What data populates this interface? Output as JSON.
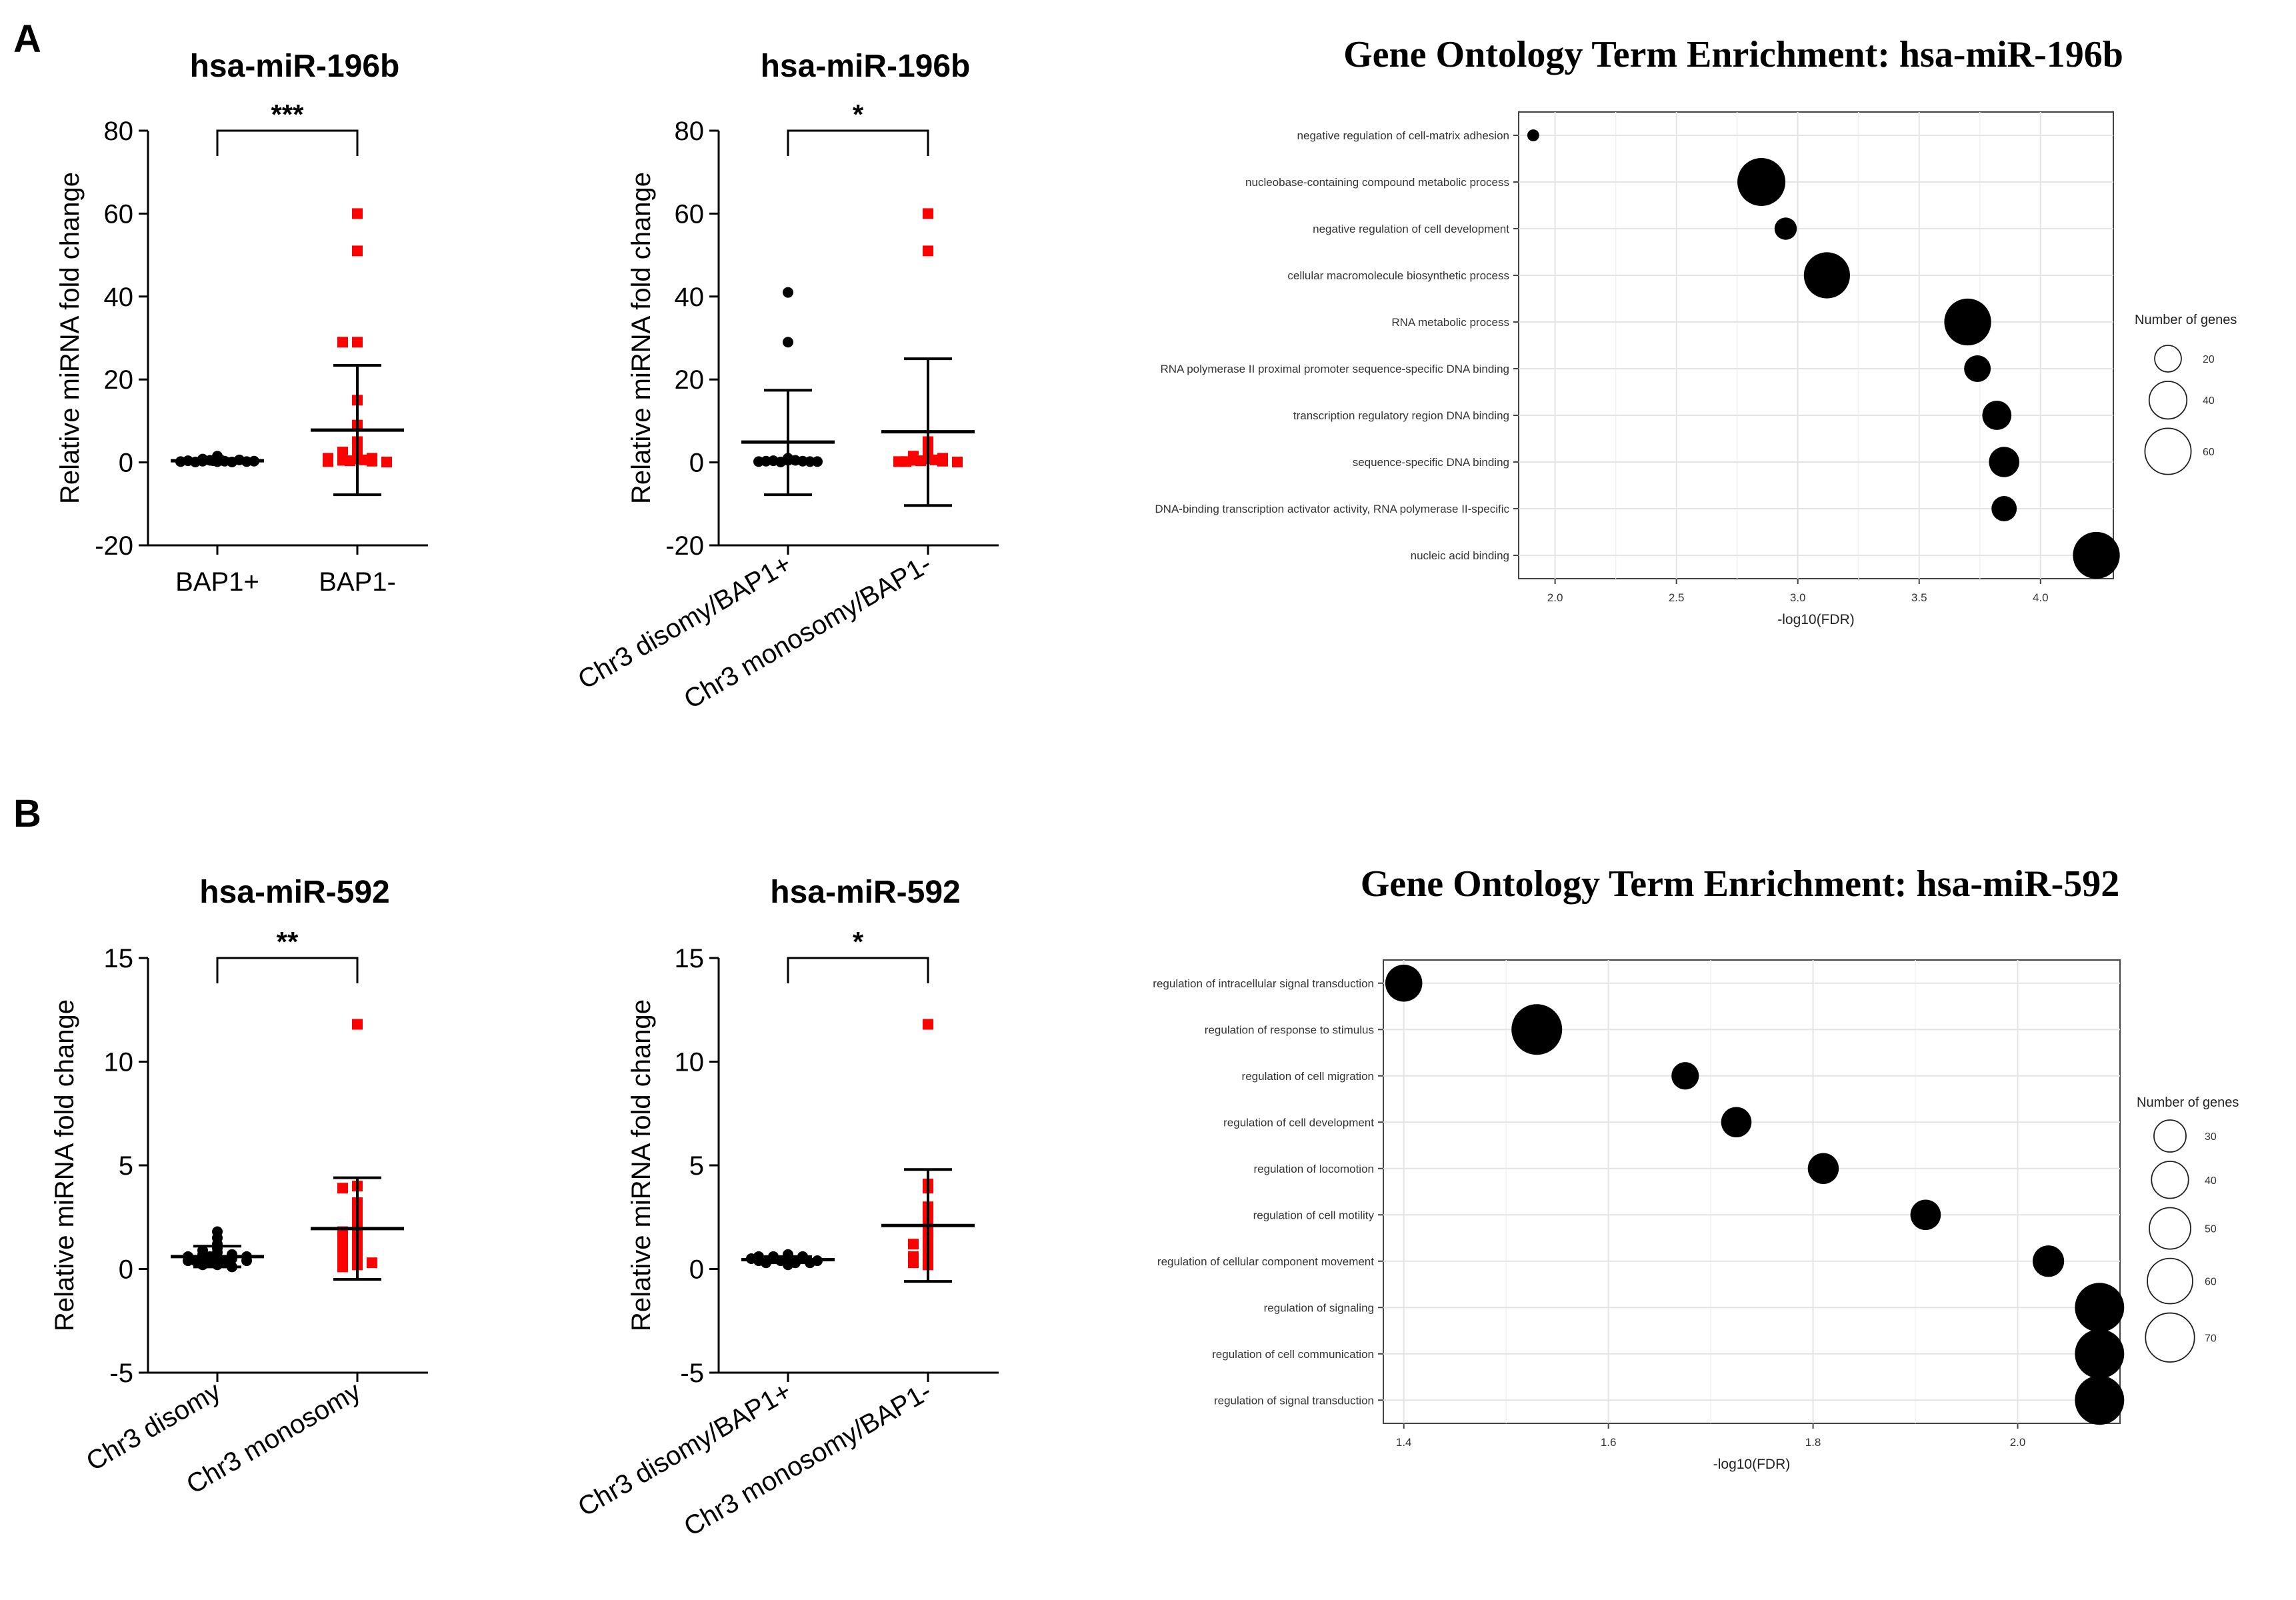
{
  "figure": {
    "panel_a": "A",
    "panel_b": "B"
  },
  "chart_data": [
    {
      "id": "a1",
      "type": "scatter",
      "title": "hsa-miR-196b",
      "ylabel": "Relative miRNA fold change",
      "ylim": [
        -20,
        80
      ],
      "yticks": [
        -20,
        0,
        20,
        40,
        60,
        80
      ],
      "categories": [
        "BAP1+",
        "BAP1-"
      ],
      "xlabel_rotated": false,
      "significance": "***",
      "groups": [
        {
          "name": "BAP1+",
          "color": "#000000",
          "marker": "circle",
          "points": [
            0.2,
            0.3,
            0.1,
            0.4,
            0.2,
            0.5,
            0.3,
            0.1,
            0.6,
            0.2,
            0.3,
            0.4,
            0.5,
            0.2,
            0.8,
            1.5
          ],
          "mean": 0.4,
          "sd_low": 0.0,
          "sd_high": 0.9
        },
        {
          "name": "BAP1-",
          "color": "#ff0000",
          "marker": "square",
          "points": [
            60,
            51,
            29,
            29,
            15,
            9,
            5,
            3,
            2.5,
            2,
            1.5,
            1,
            1,
            0.8,
            0.5,
            0.3,
            0.2,
            0.1,
            0.4,
            0.6
          ],
          "mean": 7.8,
          "sd_low": -7.8,
          "sd_high": 23.4
        }
      ]
    },
    {
      "id": "a2",
      "type": "scatter",
      "title": "hsa-miR-196b",
      "ylabel": "Relative miRNA fold change",
      "ylim": [
        -20,
        80
      ],
      "yticks": [
        -20,
        0,
        20,
        40,
        60,
        80
      ],
      "categories": [
        "Chr3 disomy/BAP1+",
        "Chr3 monosomy/BAP1-"
      ],
      "xlabel_rotated": true,
      "significance": "*",
      "groups": [
        {
          "name": "Chr3 disomy/BAP1+",
          "color": "#000000",
          "marker": "circle",
          "points": [
            41,
            29,
            1,
            0.5,
            0.4,
            0.3,
            0.2,
            0.2,
            0.1,
            0.5,
            0.3,
            0.2
          ],
          "mean": 4.9,
          "sd_low": -7.8,
          "sd_high": 17.4
        },
        {
          "name": "Chr3 monosomy/BAP1-",
          "color": "#ff0000",
          "marker": "square",
          "points": [
            60,
            51,
            5,
            3,
            2,
            1.5,
            1,
            0.8,
            0.5,
            0.3,
            0.2,
            0.1,
            0.4,
            0.6,
            0.2
          ],
          "mean": 7.4,
          "sd_low": -10.4,
          "sd_high": 25.0
        }
      ]
    },
    {
      "id": "b1",
      "type": "scatter",
      "title": "hsa-miR-592",
      "ylabel": "Relative miRNA fold change",
      "ylim": [
        -5,
        15
      ],
      "yticks": [
        -5,
        0,
        5,
        10,
        15
      ],
      "categories": [
        "Chr3 disomy",
        "Chr3 monosomy"
      ],
      "xlabel_rotated": true,
      "significance": "**",
      "groups": [
        {
          "name": "Chr3 disomy",
          "color": "#000000",
          "marker": "circle",
          "points": [
            1.8,
            1.5,
            1.2,
            1.0,
            0.9,
            0.8,
            0.7,
            0.7,
            0.6,
            0.6,
            0.5,
            0.5,
            0.5,
            0.4,
            0.4,
            0.3,
            0.3,
            0.2,
            0.2,
            0.1,
            0.4,
            0.6
          ],
          "mean": 0.6,
          "sd_low": 0.1,
          "sd_high": 1.1
        },
        {
          "name": "Chr3 monosomy",
          "color": "#ff0000",
          "marker": "square",
          "points": [
            11.8,
            4.0,
            3.9,
            3.2,
            2.8,
            2.5,
            2.2,
            2.0,
            1.8,
            1.6,
            1.5,
            1.3,
            1.2,
            1.0,
            0.9,
            0.8,
            0.6,
            0.5,
            0.4,
            0.3,
            0.2,
            0.1
          ],
          "mean": 1.95,
          "sd_low": -0.5,
          "sd_high": 4.4
        }
      ]
    },
    {
      "id": "b2",
      "type": "scatter",
      "title": "hsa-miR-592",
      "ylabel": "Relative miRNA fold change",
      "ylim": [
        -5,
        15
      ],
      "yticks": [
        -5,
        0,
        5,
        10,
        15
      ],
      "categories": [
        "Chr3 disomy/BAP1+",
        "Chr3 monosomy/BAP1-"
      ],
      "xlabel_rotated": true,
      "significance": "*",
      "groups": [
        {
          "name": "Chr3 disomy/BAP1+",
          "color": "#000000",
          "marker": "circle",
          "points": [
            0.7,
            0.6,
            0.6,
            0.5,
            0.5,
            0.5,
            0.4,
            0.4,
            0.4,
            0.3,
            0.3,
            0.3,
            0.2,
            0.5,
            0.6
          ],
          "mean": 0.45,
          "sd_low": 0.3,
          "sd_high": 0.6
        },
        {
          "name": "Chr3 monosomy/BAP1-",
          "color": "#ff0000",
          "marker": "square",
          "points": [
            11.8,
            4.1,
            3.9,
            3.0,
            2.6,
            2.2,
            2.0,
            1.7,
            1.4,
            1.2,
            1.0,
            0.8,
            0.6,
            0.4,
            0.3,
            0.2
          ],
          "mean": 2.1,
          "sd_low": -0.6,
          "sd_high": 4.8
        }
      ]
    },
    {
      "id": "go1",
      "type": "bubble",
      "title": "Gene Ontology Term Enrichment: hsa-miR-196b",
      "xlabel": "-log10(FDR)",
      "xlim": [
        1.85,
        4.3
      ],
      "xticks": [
        2.0,
        2.5,
        3.0,
        3.5,
        4.0
      ],
      "xtick_labels": [
        "2.0",
        "2.5",
        "3.0",
        "3.5",
        "4.0"
      ],
      "terms": [
        "negative regulation of cell-matrix adhesion",
        "nucleobase-containing compound metabolic process",
        "negative regulation of cell development",
        "cellular macromolecule biosynthetic process",
        "RNA metabolic process",
        "RNA polymerase II proximal promoter sequence-specific DNA binding",
        "transcription regulatory region DNA binding",
        "sequence-specific DNA binding",
        "DNA-binding transcription activator activity, RNA polymerase II-specific",
        "nucleic acid binding"
      ],
      "x": [
        1.91,
        2.85,
        2.95,
        3.12,
        3.7,
        3.74,
        3.82,
        3.85,
        3.85,
        4.23
      ],
      "size": [
        4,
        65,
        14,
        60,
        62,
        20,
        24,
        26,
        18,
        62
      ],
      "legend_title": "Number of genes",
      "legend_values": [
        20,
        40,
        60
      ],
      "legend_labels": [
        "20",
        "40",
        "60"
      ]
    },
    {
      "id": "go2",
      "type": "bubble",
      "title": "Gene Ontology Term Enrichment: hsa-miR-592",
      "xlabel": "-log10(FDR)",
      "xlim": [
        1.38,
        2.1
      ],
      "xticks": [
        1.4,
        1.6,
        1.8,
        2.0
      ],
      "xtick_labels": [
        "1.4",
        "1.6",
        "1.8",
        "2.0"
      ],
      "terms": [
        "regulation of intracellular signal transduction",
        "regulation of response to stimulus",
        "regulation of cell migration",
        "regulation of cell development",
        "regulation of locomotion",
        "regulation of cell motility",
        "regulation of cellular component movement",
        "regulation of signaling",
        "regulation of cell communication",
        "regulation of signal transduction"
      ],
      "x": [
        1.4,
        1.53,
        1.675,
        1.725,
        1.81,
        1.91,
        2.03,
        2.08,
        2.08,
        2.08
      ],
      "size": [
        40,
        75,
        22,
        27,
        28,
        27,
        29,
        71,
        71,
        71
      ],
      "legend_title": "Number of genes",
      "legend_values": [
        30,
        40,
        50,
        60,
        70
      ],
      "legend_labels": [
        "30",
        "40",
        "50",
        "60",
        "70"
      ]
    }
  ]
}
